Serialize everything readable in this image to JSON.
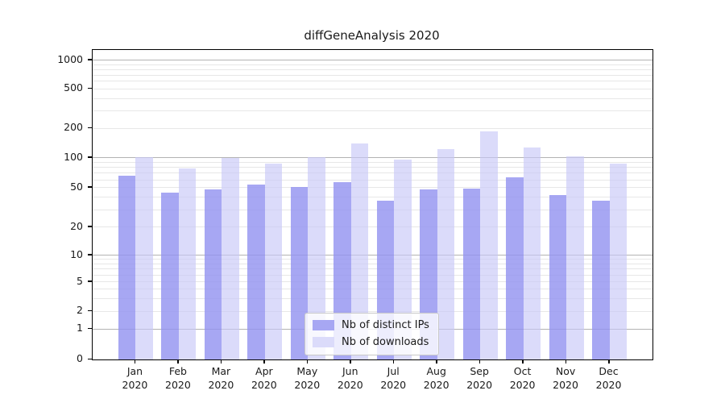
{
  "chart_data": {
    "type": "bar",
    "title": "diffGeneAnalysis 2020",
    "year_label": "2020",
    "categories": [
      "Jan",
      "Feb",
      "Mar",
      "Apr",
      "May",
      "Jun",
      "Jul",
      "Aug",
      "Sep",
      "Oct",
      "Nov",
      "Dec"
    ],
    "series": [
      {
        "name": "Nb of distinct IPs",
        "bar_color": "rgba(148,148,240,0.82)",
        "legend_color": "#a7a7f3",
        "values": [
          66,
          45,
          48,
          54,
          51,
          57,
          37,
          48,
          49,
          64,
          42,
          37
        ]
      },
      {
        "name": "Nb of downloads",
        "bar_color": "rgba(199,199,248,0.65)",
        "legend_color": "#dbdbfa",
        "values": [
          102,
          78,
          100,
          87,
          101,
          140,
          95,
          123,
          188,
          128,
          104,
          87
        ]
      }
    ],
    "yscale": "symlog",
    "yticks": [
      0,
      1,
      2,
      5,
      10,
      20,
      50,
      100,
      200,
      500,
      1000
    ],
    "ylim": [
      0,
      1300
    ],
    "xlabel": "",
    "ylabel": "",
    "grid": "horizontal major and log-minor gridlines",
    "legend_position": "lower center",
    "colors": {
      "major_grid": "#b3b3b3",
      "minor_grid": "#e7e7e7",
      "spine": "#000000",
      "text": "#1a1a1a"
    }
  }
}
